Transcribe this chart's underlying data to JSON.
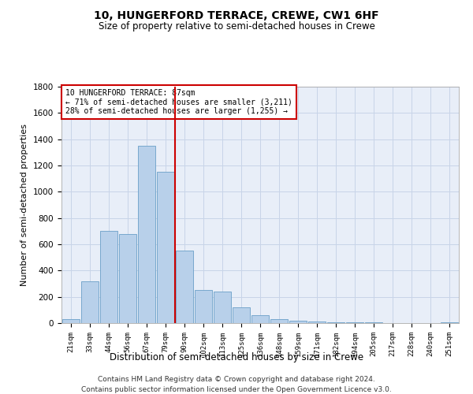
{
  "title": "10, HUNGERFORD TERRACE, CREWE, CW1 6HF",
  "subtitle": "Size of property relative to semi-detached houses in Crewe",
  "xlabel": "Distribution of semi-detached houses by size in Crewe",
  "ylabel": "Number of semi-detached properties",
  "categories": [
    "21sqm",
    "33sqm",
    "44sqm",
    "56sqm",
    "67sqm",
    "79sqm",
    "90sqm",
    "102sqm",
    "113sqm",
    "125sqm",
    "136sqm",
    "148sqm",
    "159sqm",
    "171sqm",
    "182sqm",
    "194sqm",
    "205sqm",
    "217sqm",
    "228sqm",
    "240sqm",
    "251sqm"
  ],
  "values": [
    30,
    320,
    700,
    680,
    1350,
    1150,
    550,
    250,
    240,
    120,
    60,
    30,
    20,
    12,
    8,
    5,
    4,
    3,
    3,
    3,
    5
  ],
  "bar_color": "#b8d0ea",
  "bar_edge_color": "#6a9fc8",
  "property_sqm": 87,
  "property_name": "10 HUNGERFORD TERRACE",
  "pct_smaller": 71,
  "count_smaller": 3211,
  "pct_larger": 28,
  "count_larger": 1255,
  "annotation_box_color": "#cc0000",
  "vline_color": "#cc0000",
  "grid_color": "#c8d4e8",
  "background_color": "#e8eef8",
  "ylim": [
    0,
    1800
  ],
  "yticks": [
    0,
    200,
    400,
    600,
    800,
    1000,
    1200,
    1400,
    1600,
    1800
  ],
  "footer_line1": "Contains HM Land Registry data © Crown copyright and database right 2024.",
  "footer_line2": "Contains public sector information licensed under the Open Government Licence v3.0."
}
